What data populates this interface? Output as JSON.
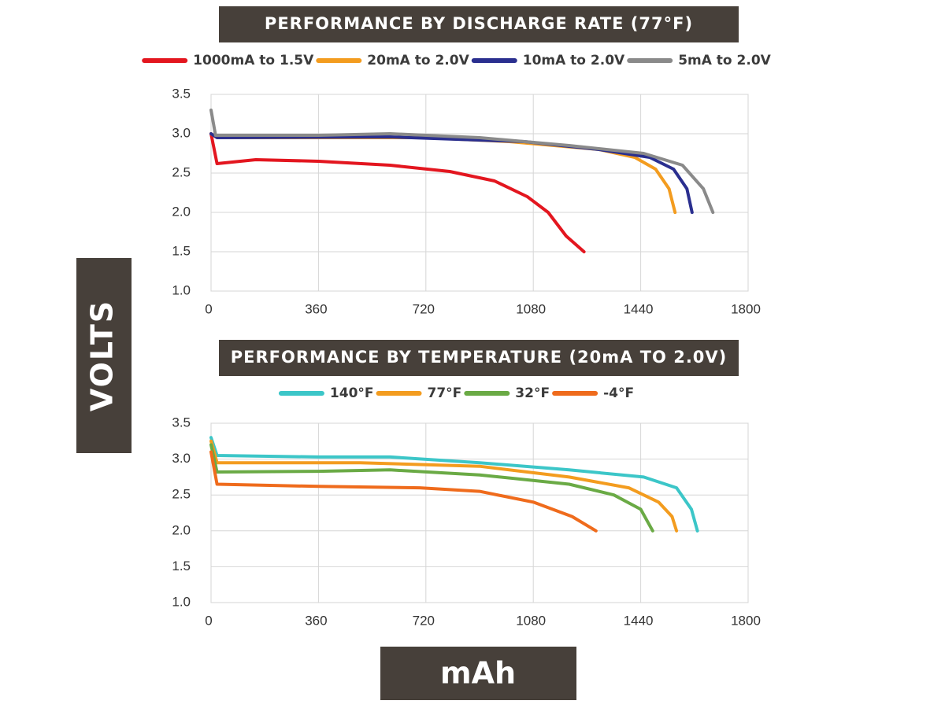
{
  "y_label": "VOLTS",
  "x_label": "mAh",
  "chart_data": [
    {
      "type": "line",
      "title": "PERFORMANCE BY DISCHARGE RATE (77°F)",
      "xlim": [
        0,
        1800
      ],
      "xticks": [
        0,
        360,
        720,
        1080,
        1440,
        1800
      ],
      "ylim": [
        1,
        3.5
      ],
      "yticks": [
        {
          "value": 1,
          "label": "1.0"
        },
        1.5,
        {
          "value": 2,
          "label": "2.0"
        },
        2.5,
        {
          "value": 3,
          "label": "3.0"
        },
        3.5
      ],
      "grid": true,
      "legend": "top",
      "series": [
        {
          "name": "1000mA to 1.5V",
          "color": "#e3161f",
          "x": [
            0,
            20,
            150,
            360,
            600,
            800,
            950,
            1060,
            1130,
            1190,
            1250
          ],
          "values": [
            3.0,
            2.62,
            2.67,
            2.65,
            2.6,
            2.52,
            2.4,
            2.2,
            2.0,
            1.7,
            1.5
          ]
        },
        {
          "name": "20mA to 2.0V",
          "color": "#f39c1f",
          "x": [
            0,
            20,
            360,
            720,
            1000,
            1300,
            1420,
            1490,
            1535,
            1555
          ],
          "values": [
            3.0,
            2.95,
            2.95,
            2.95,
            2.9,
            2.8,
            2.7,
            2.55,
            2.3,
            2.0
          ]
        },
        {
          "name": "10mA to 2.0V",
          "color": "#2a2f8f",
          "x": [
            0,
            20,
            600,
            1050,
            1300,
            1470,
            1550,
            1595,
            1612
          ],
          "values": [
            3.0,
            2.95,
            2.96,
            2.9,
            2.8,
            2.7,
            2.55,
            2.3,
            2.0
          ]
        },
        {
          "name": "5mA to 2.0V",
          "color": "#8a8a8a",
          "x": [
            0,
            15,
            360,
            600,
            900,
            1200,
            1450,
            1580,
            1650,
            1682
          ],
          "values": [
            3.3,
            2.98,
            2.98,
            3.0,
            2.95,
            2.85,
            2.75,
            2.6,
            2.3,
            2.0
          ]
        }
      ]
    },
    {
      "type": "line",
      "title": "PERFORMANCE BY TEMPERATURE (20mA TO 2.0V)",
      "xlim": [
        0,
        1800
      ],
      "xticks": [
        0,
        360,
        720,
        1080,
        1440,
        1800
      ],
      "ylim": [
        1,
        3.5
      ],
      "yticks": [
        {
          "value": 1,
          "label": "1.0"
        },
        1.5,
        {
          "value": 2,
          "label": "2.0"
        },
        2.5,
        {
          "value": 3,
          "label": "3.0"
        },
        3.5
      ],
      "grid": true,
      "legend": "top",
      "series": [
        {
          "name": "140°F",
          "color": "#3cc6c8",
          "x": [
            0,
            20,
            360,
            600,
            900,
            1200,
            1450,
            1560,
            1610,
            1630
          ],
          "values": [
            3.3,
            3.05,
            3.03,
            3.03,
            2.95,
            2.85,
            2.75,
            2.6,
            2.3,
            2.0
          ]
        },
        {
          "name": "77°F",
          "color": "#f39c1f",
          "x": [
            0,
            20,
            500,
            900,
            1200,
            1400,
            1500,
            1545,
            1560
          ],
          "values": [
            3.25,
            2.95,
            2.95,
            2.9,
            2.75,
            2.6,
            2.4,
            2.2,
            2.0
          ]
        },
        {
          "name": "32°F",
          "color": "#6aaa45",
          "x": [
            0,
            20,
            360,
            600,
            900,
            1200,
            1350,
            1440,
            1480
          ],
          "values": [
            3.2,
            2.82,
            2.83,
            2.85,
            2.78,
            2.65,
            2.5,
            2.3,
            2.0
          ]
        },
        {
          "name": "-4°F",
          "color": "#ef6b1c",
          "x": [
            0,
            20,
            360,
            700,
            900,
            1080,
            1210,
            1290
          ],
          "values": [
            3.1,
            2.65,
            2.62,
            2.6,
            2.55,
            2.4,
            2.2,
            2.0
          ]
        }
      ]
    }
  ]
}
